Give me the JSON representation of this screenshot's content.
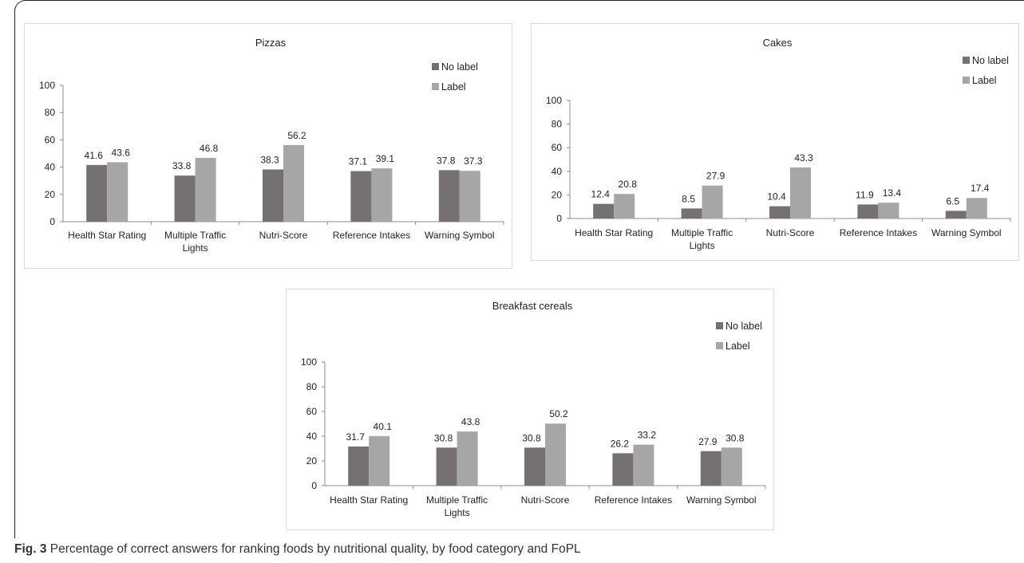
{
  "caption": {
    "label": "Fig. 3",
    "text": "Percentage of correct answers for ranking foods by nutritional quality, by food category and FoPL"
  },
  "colors": {
    "no_label": "#767171",
    "label": "#a6a6a6",
    "axis": "#8c8c8c",
    "panel_border": "#d9d9d9"
  },
  "chart_data": [
    {
      "type": "bar",
      "title": "Pizzas",
      "categories": [
        "Health Star Rating",
        "Multiple Traffic Lights",
        "Nutri-Score",
        "Reference Intakes",
        "Warning Symbol"
      ],
      "series": [
        {
          "name": "No label",
          "values": [
            41.6,
            33.8,
            38.3,
            37.1,
            37.8
          ]
        },
        {
          "name": "Label",
          "values": [
            43.6,
            46.8,
            56.2,
            39.1,
            37.3
          ]
        }
      ],
      "ylim": [
        0,
        100
      ],
      "yticks": [
        0,
        20,
        40,
        60,
        80,
        100
      ],
      "grid": false,
      "legend": "top-right"
    },
    {
      "type": "bar",
      "title": "Cakes",
      "categories": [
        "Health Star Rating",
        "Multiple Traffic Lights",
        "Nutri-Score",
        "Reference Intakes",
        "Warning Symbol"
      ],
      "series": [
        {
          "name": "No label",
          "values": [
            12.4,
            8.5,
            10.4,
            11.9,
            6.5
          ]
        },
        {
          "name": "Label",
          "values": [
            20.8,
            27.9,
            43.3,
            13.4,
            17.4
          ]
        }
      ],
      "ylim": [
        0,
        100
      ],
      "yticks": [
        0,
        20,
        40,
        60,
        80,
        100
      ],
      "grid": false,
      "legend": "top-right"
    },
    {
      "type": "bar",
      "title": "Breakfast cereals",
      "categories": [
        "Health Star Rating",
        "Multiple Traffic Lights",
        "Nutri-Score",
        "Reference Intakes",
        "Warning Symbol"
      ],
      "series": [
        {
          "name": "No label",
          "values": [
            31.7,
            30.8,
            30.8,
            26.2,
            27.9
          ]
        },
        {
          "name": "Label",
          "values": [
            40.1,
            43.8,
            50.2,
            33.2,
            30.8
          ]
        }
      ],
      "ylim": [
        0,
        100
      ],
      "yticks": [
        0,
        20,
        40,
        60,
        80,
        100
      ],
      "grid": false,
      "legend": "top-right"
    }
  ]
}
